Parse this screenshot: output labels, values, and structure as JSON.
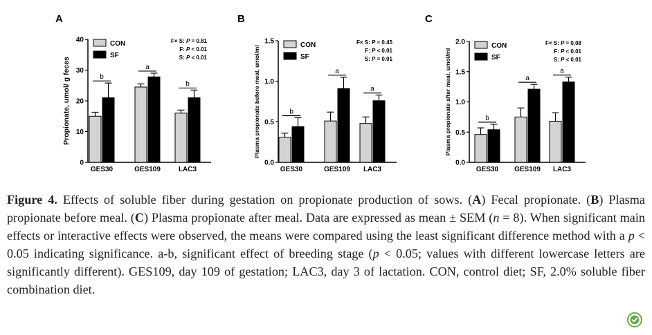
{
  "chart_data": [
    {
      "type": "bar",
      "panel": "A",
      "ylabel": "Propionate, umol/ g feces",
      "ylim": [
        0,
        40
      ],
      "yticks": [
        "0",
        "10",
        "20",
        "30",
        "40"
      ],
      "categories": [
        "GES30",
        "GES109",
        "LAC3"
      ],
      "series": [
        {
          "name": "CON",
          "color": "#d3d3d3",
          "values": [
            15.0,
            24.5,
            16.0
          ],
          "errors": [
            1.3,
            1.0,
            1.0
          ]
        },
        {
          "name": "SF",
          "color": "#000000",
          "values": [
            21.0,
            27.8,
            21.0
          ],
          "errors": [
            4.8,
            1.2,
            2.5
          ]
        }
      ],
      "letters": [
        "b",
        "a",
        "b"
      ],
      "stats": [
        "F× S: P = 0.81",
        "F: P < 0.01",
        "S: P < 0.01"
      ],
      "legend": "top-left"
    },
    {
      "type": "bar",
      "panel": "B",
      "ylabel": "Plasma propionate before meal, umol/ml",
      "ylim": [
        0,
        1.5
      ],
      "yticks": [
        "0.0",
        "0.5",
        "1.0",
        "1.5"
      ],
      "categories": [
        "GES30",
        "GES109",
        "LAC3"
      ],
      "series": [
        {
          "name": "CON",
          "color": "#d3d3d3",
          "values": [
            0.31,
            0.51,
            0.48
          ],
          "errors": [
            0.05,
            0.11,
            0.08
          ]
        },
        {
          "name": "SF",
          "color": "#000000",
          "values": [
            0.44,
            0.91,
            0.76
          ],
          "errors": [
            0.11,
            0.14,
            0.07
          ]
        }
      ],
      "letters": [
        "b",
        "a",
        "a"
      ],
      "stats": [
        "F× S: P = 0.45",
        "F: P < 0.01",
        "S: P = 0.01"
      ],
      "legend": "top-left"
    },
    {
      "type": "bar",
      "panel": "C",
      "ylabel": "Plasma propionate after meal, umol/ml",
      "ylim": [
        0,
        2.0
      ],
      "yticks": [
        "0.0",
        "0.5",
        "1.0",
        "1.5",
        "2.0"
      ],
      "categories": [
        "GES30",
        "GES109",
        "LAC3"
      ],
      "series": [
        {
          "name": "CON",
          "color": "#d3d3d3",
          "values": [
            0.46,
            0.75,
            0.68
          ],
          "errors": [
            0.11,
            0.15,
            0.14
          ]
        },
        {
          "name": "SF",
          "color": "#000000",
          "values": [
            0.54,
            1.21,
            1.33
          ],
          "errors": [
            0.09,
            0.08,
            0.08
          ]
        }
      ],
      "letters": [
        "b",
        "a",
        "a"
      ],
      "stats": [
        "F× S: P = 0.08",
        "F: P < 0.01",
        "S: P < 0.01"
      ],
      "legend": "top-left"
    }
  ],
  "caption": {
    "label": "Figure 4.",
    "t1": " Effects of soluble fiber during gestation on propionate production of sows. (",
    "A": "A",
    "t2": ") Fecal propionate. (",
    "B": "B",
    "t3": ") Plasma propionate before meal. (",
    "C": "C",
    "t4": ") Plasma propionate after meal. Data are expressed as mean ± SEM (",
    "n": "n",
    "t5": " = 8). When significant main effects or interactive effects were observed, the means were compared using the least significant difference method with a ",
    "p1": "p",
    "t6": " < 0.05 indicating significance. a-b, significant effect of breeding stage (",
    "p2": "p",
    "t7": " < 0.05; values with different lowercase letters are significantly different). GES109, day 109 of gestation; LAC3, day 3 of lactation. CON, control diet; SF, 2.0% soluble fiber combination diet."
  },
  "badge_icon": "check-badge-icon",
  "badge_color": "#6aa84f"
}
